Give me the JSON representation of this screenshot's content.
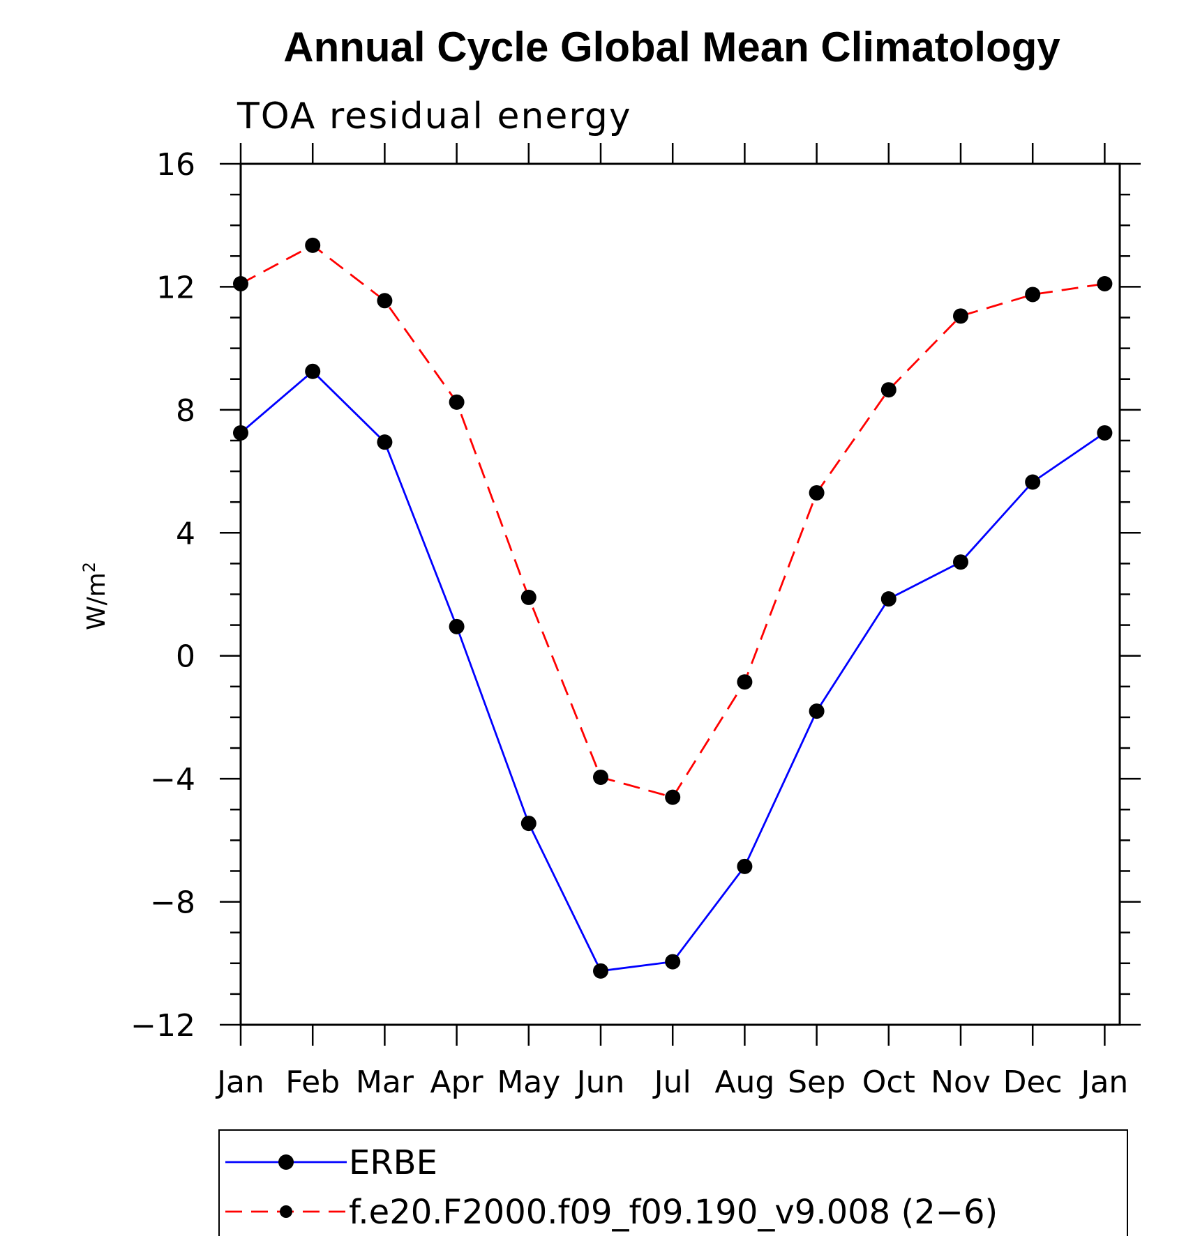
{
  "chart_data": {
    "type": "line",
    "title": "Annual Cycle Global Mean Climatology",
    "subtitle": "TOA residual energy",
    "ylabel": "W/m",
    "ylabel_sup": "2",
    "categories": [
      "Jan",
      "Feb",
      "Mar",
      "Apr",
      "May",
      "Jun",
      "Jul",
      "Aug",
      "Sep",
      "Oct",
      "Nov",
      "Dec",
      "Jan"
    ],
    "ylim": [
      -12,
      16
    ],
    "yticks": [
      -12,
      -8,
      -4,
      0,
      4,
      8,
      12,
      16
    ],
    "ytick_labels": [
      "−12",
      "−8",
      "−4",
      "0",
      "4",
      "8",
      "12",
      "16"
    ],
    "grid": false,
    "legend_position": "bottom",
    "series": [
      {
        "name": "ERBE",
        "color": "#0000ff",
        "dash": "solid",
        "values": [
          7.25,
          9.25,
          6.95,
          0.95,
          -5.45,
          -10.25,
          -9.95,
          -6.85,
          -1.8,
          1.85,
          3.05,
          5.65,
          7.25
        ]
      },
      {
        "name": "f.e20.F2000.f09_f09.190_v9.008 (2−6)",
        "color": "#ff0000",
        "dash": "dashed",
        "values": [
          12.1,
          13.35,
          11.55,
          8.25,
          1.9,
          -3.95,
          -4.6,
          -0.85,
          5.3,
          8.65,
          11.05,
          11.75,
          12.1
        ]
      }
    ]
  }
}
